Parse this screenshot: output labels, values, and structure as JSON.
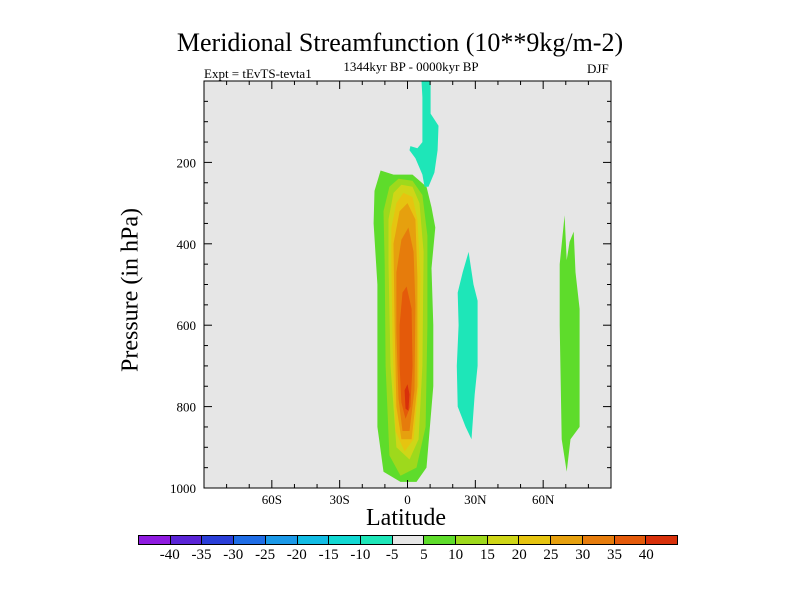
{
  "chart_data": {
    "type": "contour",
    "title": "Meridional Streamfunction (10**9kg/m-2)",
    "subtitle_left": "Expt = tEvTS-tevta1",
    "subtitle_center": "1344kyr BP - 0000kyr BP",
    "subtitle_right": "DJF",
    "xlabel": "Latitude",
    "ylabel": "Pressure (in hPa)",
    "xlim": [
      -90,
      90
    ],
    "ylim": [
      1000,
      0
    ],
    "x_ticks": [
      {
        "value": -60,
        "label": "60S"
      },
      {
        "value": -30,
        "label": "30S"
      },
      {
        "value": 0,
        "label": "0"
      },
      {
        "value": 30,
        "label": "30N"
      },
      {
        "value": 60,
        "label": "60N"
      }
    ],
    "y_ticks": [
      {
        "value": 200,
        "label": "200"
      },
      {
        "value": 400,
        "label": "400"
      },
      {
        "value": 600,
        "label": "600"
      },
      {
        "value": 800,
        "label": "800"
      },
      {
        "value": 1000,
        "label": "1000"
      }
    ],
    "background_color": "#e6e6e6",
    "contour_levels": [
      -40,
      -35,
      -30,
      -25,
      -20,
      -15,
      -10,
      -5,
      5,
      10,
      15,
      20,
      25,
      30,
      35,
      40
    ],
    "colorbar_colors": [
      "#8f1be0",
      "#5a24d6",
      "#2a3ed8",
      "#1f6de6",
      "#1b99e8",
      "#12bce4",
      "#12d8d2",
      "#1ee6b8",
      "#e6e6e6",
      "#5edc2b",
      "#9ed91c",
      "#cfd617",
      "#e6c410",
      "#e6a00e",
      "#e67c0c",
      "#e45a0a",
      "#d8300a"
    ],
    "regions": [
      {
        "name": "main-cell-5to10",
        "level": 5,
        "color": "#5edc2b",
        "points": [
          [
            -14.6,
            270
          ],
          [
            -11.9,
            220
          ],
          [
            -6.2,
            230
          ],
          [
            2.2,
            230
          ],
          [
            8.4,
            260
          ],
          [
            10.6,
            310
          ],
          [
            12.3,
            360
          ],
          [
            10.6,
            460
          ],
          [
            11.4,
            600
          ],
          [
            11.4,
            750
          ],
          [
            8.4,
            950
          ],
          [
            4.0,
            985
          ],
          [
            -3.1,
            985
          ],
          [
            -10.6,
            960
          ],
          [
            -13.3,
            850
          ],
          [
            -13.3,
            500
          ],
          [
            -15.0,
            350
          ]
        ]
      },
      {
        "name": "main-cell-10to15",
        "level": 10,
        "color": "#9ed91c",
        "points": [
          [
            -10.6,
            320
          ],
          [
            -8.0,
            260
          ],
          [
            -4.0,
            240
          ],
          [
            2.2,
            245
          ],
          [
            6.6,
            280
          ],
          [
            8.8,
            380
          ],
          [
            8.8,
            600
          ],
          [
            8.0,
            850
          ],
          [
            4.0,
            950
          ],
          [
            -3.1,
            970
          ],
          [
            -8.0,
            920
          ],
          [
            -9.7,
            700
          ],
          [
            -10.1,
            450
          ]
        ]
      },
      {
        "name": "main-cell-15to20",
        "level": 15,
        "color": "#cfd617",
        "points": [
          [
            -8.4,
            340
          ],
          [
            -6.2,
            275
          ],
          [
            -2.7,
            255
          ],
          [
            2.2,
            260
          ],
          [
            5.3,
            300
          ],
          [
            7.1,
            420
          ],
          [
            6.6,
            700
          ],
          [
            4.9,
            880
          ],
          [
            0.9,
            930
          ],
          [
            -4.9,
            900
          ],
          [
            -7.5,
            700
          ],
          [
            -8.4,
            450
          ]
        ]
      },
      {
        "name": "main-cell-20to25",
        "level": 20,
        "color": "#e6c410",
        "points": [
          [
            -7.1,
            360
          ],
          [
            -4.9,
            300
          ],
          [
            -1.8,
            275
          ],
          [
            2.2,
            285
          ],
          [
            4.4,
            340
          ],
          [
            5.7,
            480
          ],
          [
            4.9,
            750
          ],
          [
            2.7,
            880
          ],
          [
            -1.3,
            910
          ],
          [
            -5.3,
            860
          ],
          [
            -6.6,
            650
          ],
          [
            -7.1,
            450
          ]
        ]
      },
      {
        "name": "main-cell-25to30",
        "level": 25,
        "color": "#e6a00e",
        "points": [
          [
            -6.2,
            400
          ],
          [
            -3.5,
            320
          ],
          [
            0.0,
            300
          ],
          [
            3.5,
            340
          ],
          [
            4.4,
            480
          ],
          [
            4.4,
            750
          ],
          [
            1.8,
            880
          ],
          [
            -2.7,
            880
          ],
          [
            -4.9,
            800
          ],
          [
            -5.7,
            600
          ]
        ]
      },
      {
        "name": "main-cell-30to35",
        "level": 30,
        "color": "#e67c0c",
        "points": [
          [
            -4.9,
            470
          ],
          [
            -2.7,
            390
          ],
          [
            0.4,
            360
          ],
          [
            2.7,
            420
          ],
          [
            3.5,
            550
          ],
          [
            3.1,
            760
          ],
          [
            0.9,
            860
          ],
          [
            -2.2,
            860
          ],
          [
            -4.0,
            780
          ],
          [
            -4.9,
            620
          ]
        ]
      },
      {
        "name": "main-cell-35to40",
        "level": 35,
        "color": "#e45a0a",
        "points": [
          [
            -3.5,
            600
          ],
          [
            -2.2,
            520
          ],
          [
            -0.4,
            505
          ],
          [
            1.8,
            560
          ],
          [
            2.2,
            700
          ],
          [
            1.3,
            800
          ],
          [
            -0.9,
            830
          ],
          [
            -2.7,
            790
          ],
          [
            -3.5,
            700
          ]
        ]
      },
      {
        "name": "main-cell-core-40",
        "level": 40,
        "color": "#d8300a",
        "points": [
          [
            -1.3,
            760
          ],
          [
            0.0,
            745
          ],
          [
            0.9,
            770
          ],
          [
            0.4,
            810
          ],
          [
            -0.9,
            805
          ]
        ]
      },
      {
        "name": "equatorial-plume-neg",
        "level": -5,
        "color": "#1ee6b8",
        "points": [
          [
            6.2,
            0
          ],
          [
            10.2,
            0
          ],
          [
            10.2,
            80
          ],
          [
            13.7,
            110
          ],
          [
            13.3,
            170
          ],
          [
            11.9,
            225
          ],
          [
            9.3,
            260
          ],
          [
            7.5,
            260
          ],
          [
            6.6,
            230
          ],
          [
            3.5,
            190
          ],
          [
            0.9,
            170
          ],
          [
            1.3,
            160
          ],
          [
            4.4,
            165
          ],
          [
            6.6,
            150
          ],
          [
            6.6,
            40
          ]
        ]
      },
      {
        "name": "tropical-cell-neg",
        "level": -5,
        "color": "#1ee6b8",
        "points": [
          [
            24.4,
            470
          ],
          [
            27.0,
            420
          ],
          [
            29.2,
            500
          ],
          [
            31.0,
            540
          ],
          [
            31.0,
            700
          ],
          [
            29.7,
            770
          ],
          [
            28.3,
            880
          ],
          [
            25.7,
            850
          ],
          [
            22.2,
            800
          ],
          [
            21.8,
            700
          ],
          [
            22.6,
            600
          ],
          [
            22.2,
            520
          ]
        ]
      },
      {
        "name": "high-lat-cell-pos",
        "level": 5,
        "color": "#5edc2b",
        "points": [
          [
            69.5,
            330
          ],
          [
            70.4,
            440
          ],
          [
            71.7,
            395
          ],
          [
            73.5,
            370
          ],
          [
            74.3,
            470
          ],
          [
            76.1,
            560
          ],
          [
            76.1,
            850
          ],
          [
            72.1,
            880
          ],
          [
            70.4,
            960
          ],
          [
            68.2,
            880
          ],
          [
            67.3,
            600
          ],
          [
            67.3,
            450
          ]
        ]
      }
    ]
  }
}
